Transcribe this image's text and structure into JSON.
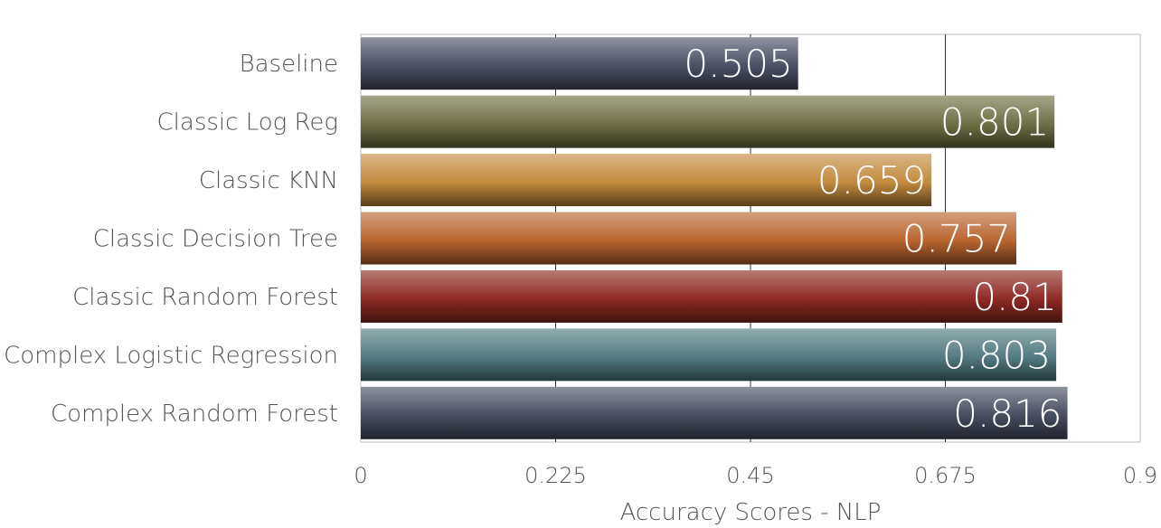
{
  "chart_data": {
    "type": "bar",
    "orientation": "horizontal",
    "categories": [
      "Baseline",
      "Classic Log Reg",
      "Classic KNN",
      "Classic Decision Tree",
      "Classic Random Forest",
      "Complex Logistic Regression",
      "Complex Random Forest"
    ],
    "values": [
      0.505,
      0.801,
      0.659,
      0.757,
      0.81,
      0.803,
      0.816
    ],
    "value_labels": [
      "0.505",
      "0.801",
      "0.659",
      "0.757",
      "0.81",
      "0.803",
      "0.816"
    ],
    "bar_colors": [
      "#4a5064",
      "#6f6f45",
      "#c38a3e",
      "#b9652f",
      "#8e2a22",
      "#517b80",
      "#474d60"
    ],
    "xlabel": "Accuracy Scores -  NLP",
    "ylabel": "",
    "title": "",
    "xlim": [
      0,
      0.9
    ],
    "xticks": [
      0,
      0.225,
      0.45,
      0.675,
      0.9
    ],
    "xtick_labels": [
      "0",
      "0.225",
      "0.45",
      "0.675",
      "0.9"
    ],
    "grid": "vertical",
    "legend": "none"
  }
}
